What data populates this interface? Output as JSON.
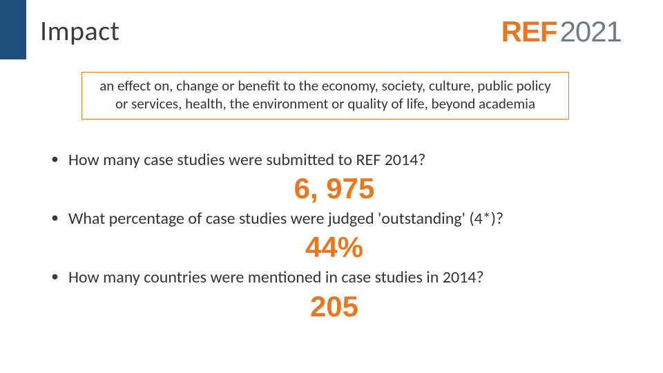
{
  "colors": {
    "sidebar": "#1f4e79",
    "accent": "#e87722",
    "logo_year": "#6f7b85",
    "text": "#333333",
    "background": "#ffffff"
  },
  "typography": {
    "title_fontsize": 40,
    "body_fontsize": 24,
    "answer_fontsize": 42,
    "logo_fontsize": 42,
    "def_fontsize": 21
  },
  "title": "Impact",
  "logo": {
    "ref": "REF",
    "year": "2021"
  },
  "definition": "an effect on, change or benefit to the economy, society, culture, public policy or services, health, the environment or quality of life, beyond academia",
  "items": [
    {
      "question": "How many case studies were submitted to REF 2014?",
      "answer": "6, 975"
    },
    {
      "question": "What percentage of case studies were judged 'outstanding' (4*)?",
      "answer": "44%"
    },
    {
      "question": "How many countries were mentioned in case studies in 2014?",
      "answer": "205"
    }
  ]
}
